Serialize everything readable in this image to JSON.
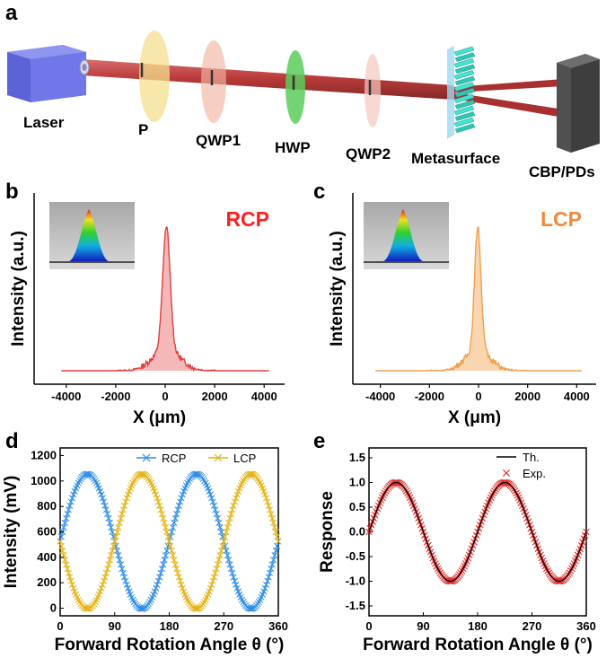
{
  "panel_letters": {
    "a": "a",
    "b": "b",
    "c": "c",
    "d": "d",
    "e": "e"
  },
  "setup": {
    "labels": {
      "laser": "Laser",
      "polarizer": "P",
      "qwp1": "QWP1",
      "hwp": "HWP",
      "qwp2": "QWP2",
      "metasurface": "Metasurface",
      "detector": "CBP/PDs"
    },
    "colors": {
      "beam": "#b52a2a",
      "laser": "#6f78e6",
      "polarizer": "#f4df8e",
      "qwp1": "#f2b3a2",
      "hwp": "#5ccd5c",
      "qwp2": "#f4c8c0",
      "metasurface": "#36d8c4",
      "detector": "#505050"
    }
  },
  "chart_data": [
    {
      "id": "b",
      "type": "line",
      "title": "RCP",
      "title_color": "#ff2020",
      "line_color": "#e04040",
      "fill_color": "#f2a0a0",
      "xlabel": "X (μm)",
      "ylabel": "Intensity (a.u.)",
      "xlim": [
        -4500,
        4500
      ],
      "xticks": [
        -4000,
        -2000,
        0,
        2000,
        4000
      ],
      "xticklabels": [
        "-4000",
        "-2000",
        "0",
        "2000",
        "4000"
      ],
      "profile": {
        "center": 50,
        "peak": 1.0,
        "narrow_sigma": 150,
        "wide_sigma": 550,
        "wide_amp": 0.15,
        "baseline": 0.0,
        "xmin": -4200,
        "xmax": 4200
      },
      "inset": "beam profile 3D rendering"
    },
    {
      "id": "c",
      "type": "line",
      "title": "LCP",
      "title_color": "#f08a3c",
      "line_color": "#f0a050",
      "fill_color": "#f7c896",
      "xlabel": "X (μm)",
      "ylabel": "Intensity (a.u.)",
      "xlim": [
        -4500,
        4500
      ],
      "xticks": [
        -4000,
        -2000,
        0,
        2000,
        4000
      ],
      "xticklabels": [
        "-4000",
        "-2000",
        "0",
        "2000",
        "4000"
      ],
      "profile": {
        "center": -30,
        "peak": 1.0,
        "narrow_sigma": 130,
        "wide_sigma": 500,
        "wide_amp": 0.15,
        "baseline": 0.0,
        "xmin": -4200,
        "xmax": 4200
      },
      "inset": "beam profile 3D rendering"
    },
    {
      "id": "d",
      "type": "scatter",
      "xlabel": "Forward Rotation Angle θ (°)",
      "ylabel": "Intensity (mV)",
      "xlim": [
        0,
        360
      ],
      "ylim": [
        -60,
        1260
      ],
      "xticks": [
        0,
        90,
        180,
        270,
        360
      ],
      "yticks": [
        0,
        200,
        400,
        600,
        800,
        1000,
        1200
      ],
      "series": [
        {
          "name": "RCP",
          "color": "#2f8ee8",
          "model": "525 + 530*sin(2*theta)",
          "x_step": 2
        },
        {
          "name": "LCP",
          "color": "#e4b418",
          "model": "525 - 530*sin(2*theta)",
          "x_step": 2
        }
      ]
    },
    {
      "id": "e",
      "type": "line",
      "xlabel": "Forward Rotation Angle θ (°)",
      "ylabel": "Response",
      "xlim": [
        0,
        360
      ],
      "ylim": [
        -1.7,
        1.7
      ],
      "xticks": [
        0,
        90,
        180,
        270,
        360
      ],
      "yticks": [
        -1.5,
        -1.0,
        -0.5,
        0.0,
        0.5,
        1.0,
        1.5
      ],
      "yticklabels": [
        "-1.5",
        "-1.0",
        "-0.5",
        "0.0",
        "0.5",
        "1.0",
        "1.5"
      ],
      "series": [
        {
          "name": "Th.",
          "color": "#000000",
          "style": "line",
          "model": "sin(2*theta)"
        },
        {
          "name": "Exp.",
          "color": "#e03030",
          "style": "x-markers",
          "model": "sin(2*theta)",
          "x_step": 2
        }
      ]
    }
  ]
}
